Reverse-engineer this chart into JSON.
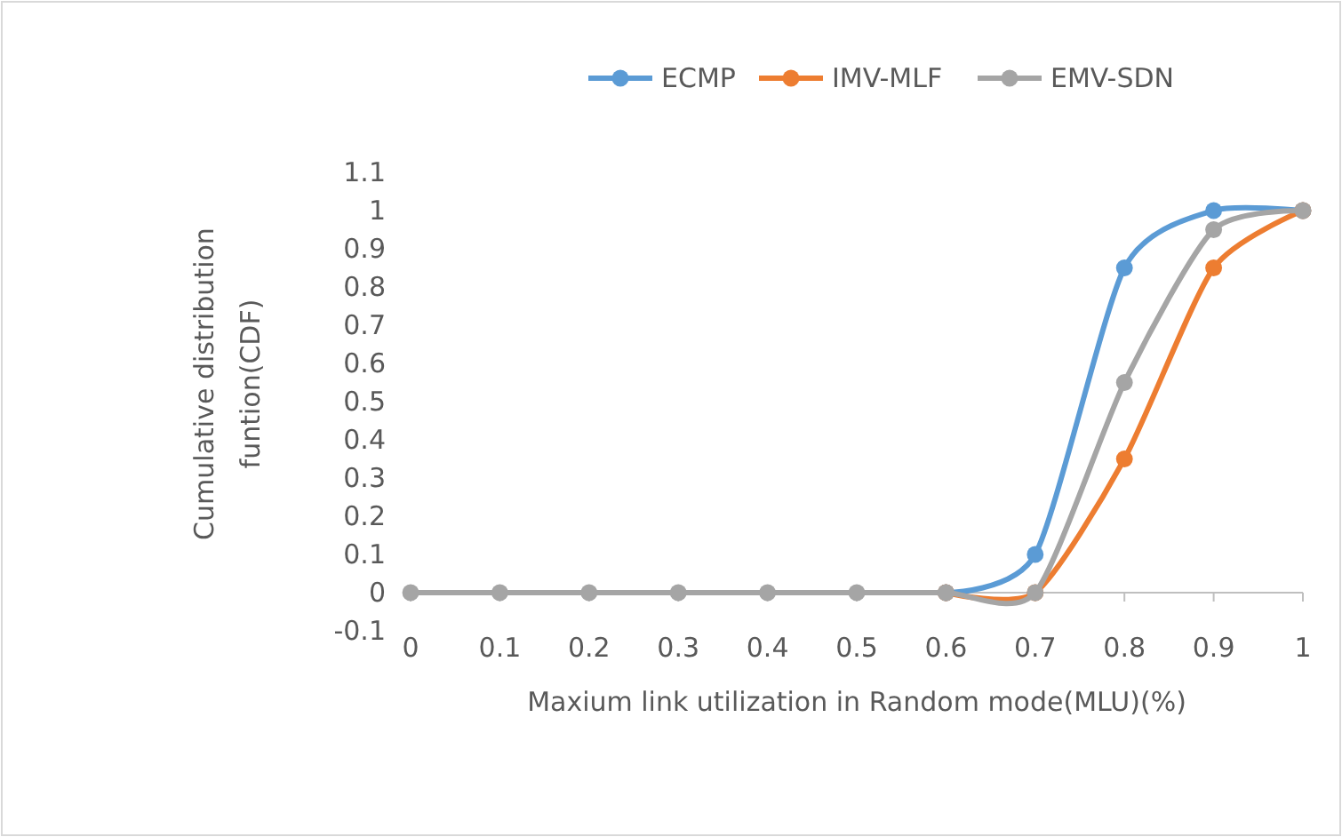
{
  "chart_data": {
    "type": "line",
    "xlabel": "Maxium link utilization in Random mode(MLU)(%)",
    "ylabel": "Cumulative distribution funtion(CDF)",
    "x": [
      0,
      0.1,
      0.2,
      0.3,
      0.4,
      0.5,
      0.6,
      0.7,
      0.8,
      0.9,
      1
    ],
    "series": [
      {
        "name": "ECMP",
        "color": "#5b9bd5",
        "values": [
          null,
          null,
          null,
          null,
          null,
          null,
          0,
          0.1,
          0.85,
          1,
          1
        ]
      },
      {
        "name": "IMV-MLF",
        "color": "#ed7d31",
        "values": [
          null,
          null,
          null,
          null,
          null,
          null,
          0,
          0,
          0.35,
          0.85,
          1
        ]
      },
      {
        "name": "EMV-SDN",
        "color": "#a5a5a5",
        "values": [
          0,
          0,
          0,
          0,
          0,
          0,
          0,
          0,
          0.55,
          0.95,
          1
        ]
      }
    ],
    "xlim": [
      0,
      1
    ],
    "xticks": [
      0,
      0.1,
      0.2,
      0.3,
      0.4,
      0.5,
      0.6,
      0.7,
      0.8,
      0.9,
      1
    ],
    "ylim": [
      -0.1,
      1.1
    ],
    "yticks": [
      -0.1,
      0,
      0.1,
      0.2,
      0.3,
      0.4,
      0.5,
      0.6,
      0.7,
      0.8,
      0.9,
      1,
      1.1
    ],
    "grid": false,
    "legend": "top",
    "marker": "circle",
    "line_style": "solid"
  }
}
